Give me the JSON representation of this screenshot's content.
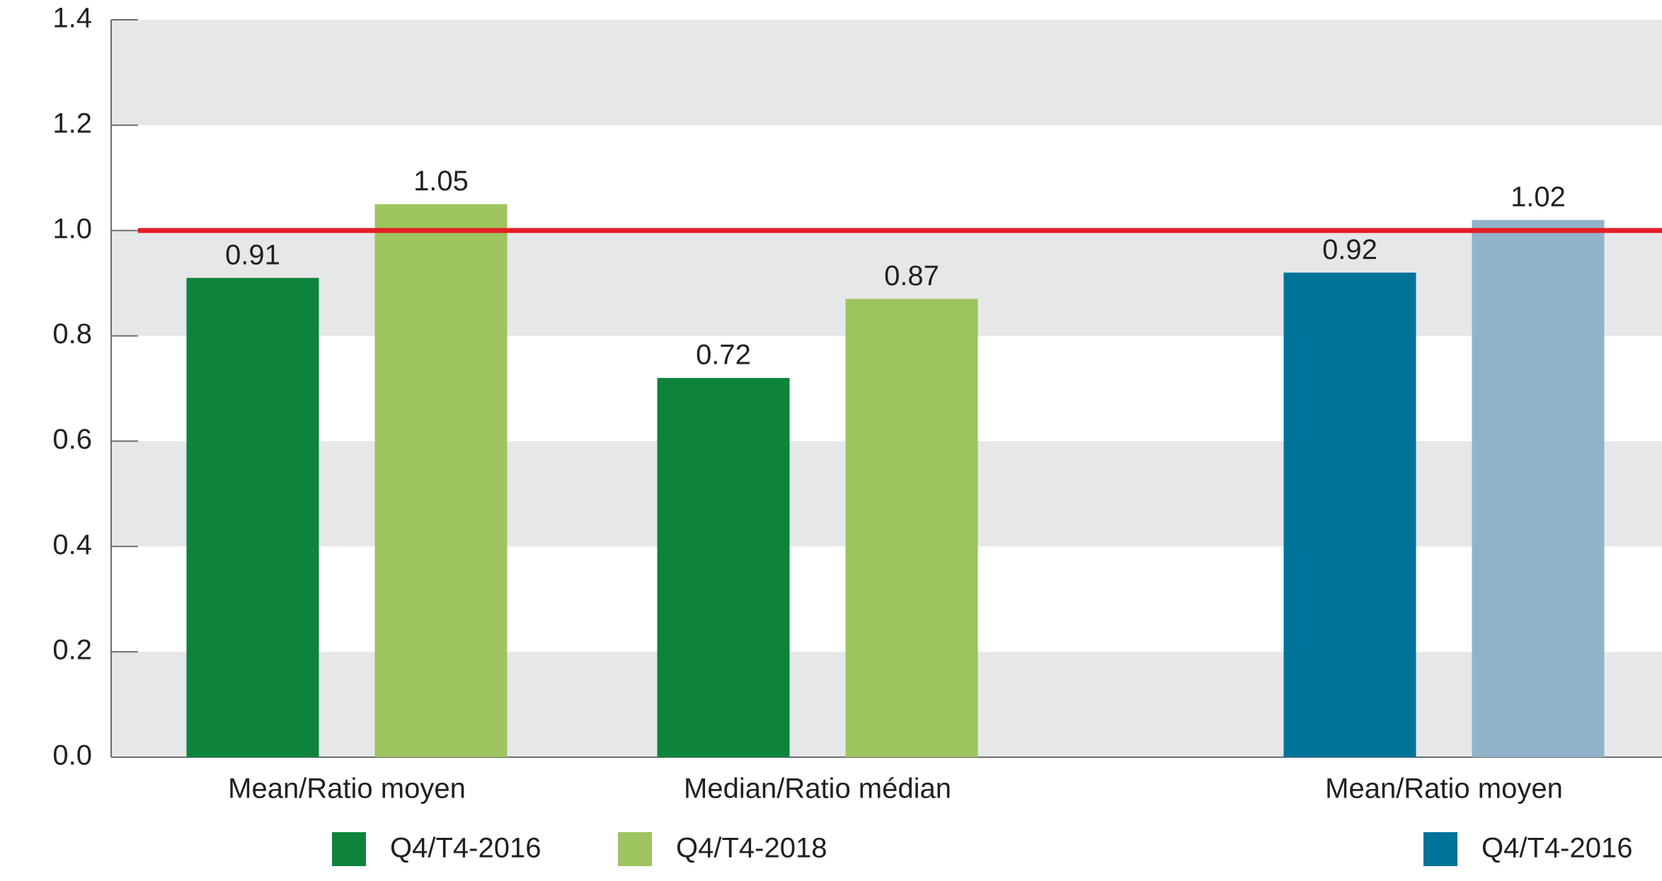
{
  "chart_data": {
    "type": "bar",
    "categories": [
      "Mean/Ratio moyen",
      "Median/Ratio médian",
      "Mean/Ratio moyen"
    ],
    "series": [
      {
        "name": "Q4/T4-2016",
        "color": "#0d833c",
        "values": [
          0.91,
          0.72,
          null
        ]
      },
      {
        "name": "Q4/T4-2018",
        "color": "#9dc45f",
        "values": [
          1.05,
          0.87,
          null
        ]
      },
      {
        "name": "Q4/T4-2016",
        "color": "#00739a",
        "values": [
          null,
          null,
          0.92
        ]
      },
      {
        "color": "#91b3ca",
        "values": [
          null,
          null,
          1.02
        ]
      }
    ],
    "ylim": [
      0,
      1.4
    ],
    "yticks": [
      {
        "value": 0,
        "label": "0.0"
      },
      0.2,
      0.4,
      0.6,
      0.8,
      {
        "value": 1,
        "label": "1.0"
      },
      1.2,
      1.4
    ],
    "grid": "bands",
    "reference_line": {
      "value": 1,
      "color": "#e31e24"
    }
  }
}
